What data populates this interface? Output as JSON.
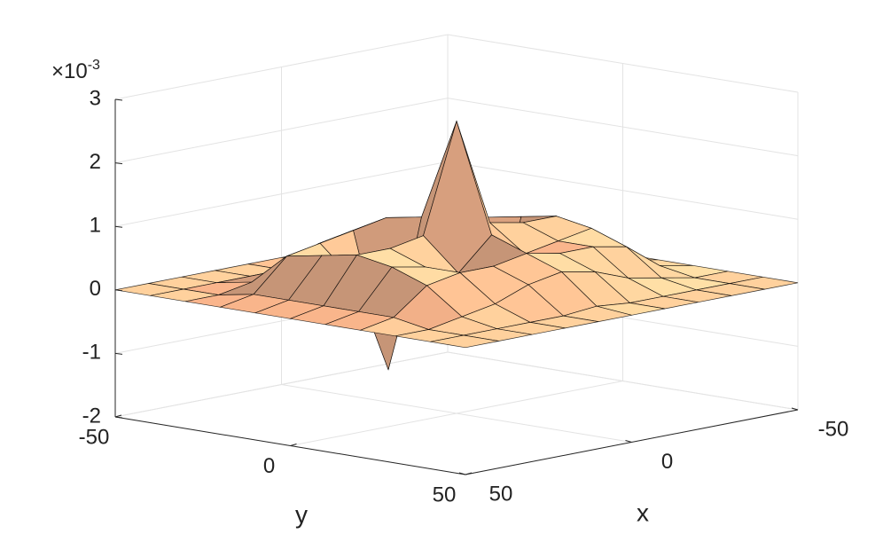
{
  "chart_data": {
    "type": "surface",
    "xlabel": "x",
    "ylabel": "y",
    "z_multiplier": {
      "base": "×10",
      "exponent": "-3"
    },
    "x": [
      -50,
      -40,
      -30,
      -20,
      -10,
      0,
      10,
      20,
      30,
      40,
      50
    ],
    "y": [
      -50,
      -40,
      -30,
      -20,
      -10,
      0,
      10,
      20,
      30,
      40,
      50
    ],
    "z": [
      [
        0,
        0,
        0,
        0,
        0,
        0,
        0,
        0,
        0,
        0,
        0
      ],
      [
        0,
        0,
        0,
        0,
        0,
        0.05,
        0,
        0,
        0,
        0,
        0
      ],
      [
        0,
        0,
        0.1,
        0.2,
        0.5,
        0.6,
        0.5,
        0.2,
        0.1,
        0,
        0
      ],
      [
        0,
        0.1,
        0.6,
        0.7,
        0.8,
        0.9,
        0.8,
        0.7,
        0.6,
        0.1,
        0
      ],
      [
        0,
        0.1,
        0.7,
        -1.1,
        0.5,
        1.0,
        -1.3,
        0.2,
        0.7,
        0.1,
        0
      ],
      [
        0,
        0.1,
        0.8,
        0.8,
        0.9,
        2.6,
        0.9,
        0.8,
        0.8,
        0.1,
        0
      ],
      [
        0,
        0.1,
        0.7,
        0.6,
        0.5,
        0.9,
        0.4,
        0.6,
        0.7,
        0.1,
        0
      ],
      [
        0,
        0.1,
        0.5,
        0.6,
        0.6,
        0.7,
        0.6,
        0.6,
        0.5,
        0.1,
        0
      ],
      [
        0,
        0,
        0.1,
        0.2,
        0.4,
        0.5,
        0.4,
        0.2,
        0.1,
        0,
        0
      ],
      [
        0,
        0,
        0,
        0,
        0,
        0.05,
        0,
        0,
        0,
        0,
        0
      ],
      [
        0,
        0,
        0,
        0,
        0,
        0,
        0,
        0,
        0,
        0,
        0
      ]
    ],
    "xlim": [
      -50,
      50
    ],
    "ylim": [
      -50,
      50
    ],
    "zlim": [
      -2,
      3
    ],
    "xticks": [
      -50,
      0,
      50
    ],
    "yticks": [
      -50,
      0,
      50
    ],
    "zticks": [
      -2,
      -1,
      0,
      1,
      2,
      3
    ],
    "grid": true,
    "colormap": "copper",
    "edge_color": "#000000"
  }
}
